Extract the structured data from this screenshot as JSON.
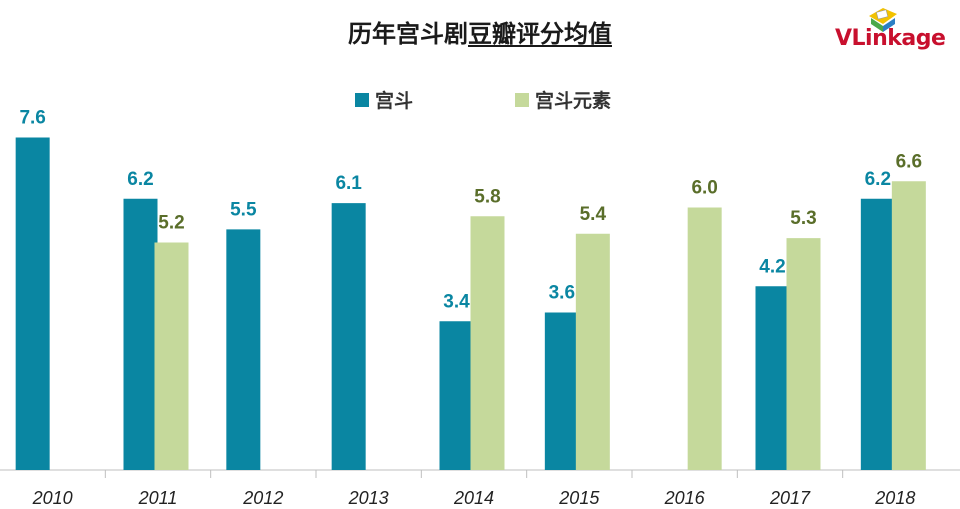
{
  "title_part1": "历年宫斗剧",
  "title_part2": "豆瓣评分均值",
  "logo": {
    "text_v": "V",
    "text_rest": "Linkage"
  },
  "colors": {
    "series1": "#0a86a2",
    "series2": "#c5d99b",
    "label1": "#0a86a2",
    "label2": "#5a6e2a"
  },
  "chart_data": {
    "type": "bar",
    "title": "历年宫斗剧豆瓣评分均值",
    "categories": [
      "2010",
      "2011",
      "2012",
      "2013",
      "2014",
      "2015",
      "2016",
      "2017",
      "2018"
    ],
    "series": [
      {
        "name": "宫斗",
        "values": [
          7.6,
          6.2,
          5.5,
          6.1,
          3.4,
          3.6,
          null,
          4.2,
          6.2
        ]
      },
      {
        "name": "宫斗元素",
        "values": [
          null,
          5.2,
          null,
          null,
          5.8,
          5.4,
          6.0,
          5.3,
          6.6
        ]
      }
    ],
    "ylim": [
      0,
      8
    ],
    "grid": false,
    "legend_position": "top",
    "xlabel": "",
    "ylabel": ""
  }
}
